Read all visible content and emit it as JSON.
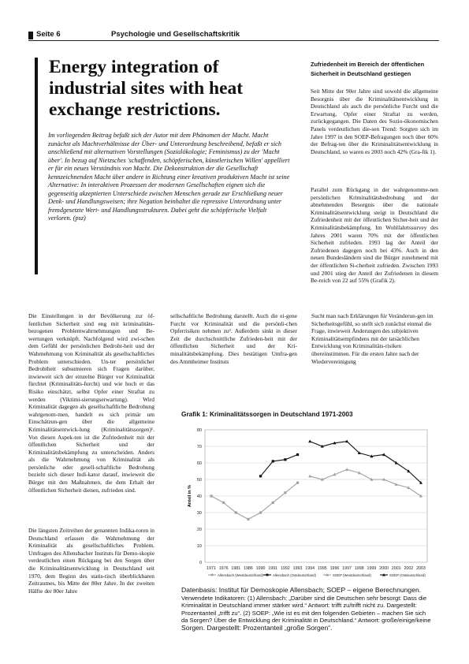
{
  "header": {
    "page": "Seite 6",
    "magazine": "Psychologie und Gesellschaftskritik"
  },
  "article": {
    "title": "Energy integration of industrial sites with heat exchange restrictions.",
    "abstract": "Im vorliegenden Beitrag befaßt sich der Autor mit dem Phänomen der Macht. Macht zunächst als Machtverhältnisse der Über- und Unterordnung beschreibend, befaßt er sich anschließend mit alternativen Vorstellungen (Sozialökologie; Feminismus) zu der 'Macht über'. In bezug auf Nietzsches 'schaffenden, schöpferischen, künstlerischen Willen' appelliert er für ein neues Verständnis von Macht. Die Dekonstruktion der die Gesellschaft kennzeichnenden Macht über andere in Richtung einer kreativen produktiven Macht ist seine Alternative: In interaktiven Prozessen der modernen Gesellschaften eignen sich die gegenseitig akzeptierten Unterschiede zwischen Menschen gerade zur Erschließung neuer Denk- und Handlungsweisen; ihre Negation beinhaltet die repressive Unterordnung unter fremdgesetzte Wert- und Handlungsstrukturen. Dabei geht die schöpferische Vielfalt verloren. (psz)"
  },
  "sidebar": {
    "heading": "Zufriedenheit im Bereich der öffentlichen Sicherheit in Deutschland gestiegen",
    "p1": "Seit Mitte der 90er Jahre sind sowohl die allgemeine Besorgnis über die Kriminalitätsentwicklung in Deutschland als auch die persönliche Furcht und die Erwartung, Opfer einer Straftat zu werden, zurückgegangen. Die Daten des Sozio-ökonomischen Panels verdeutlichen die-sen Trend: Sorgten sich im Jahre 1997 in den SOEP-Befragungen noch über 60% der Befrag-ten über die Kriminalitätsentwicklung in Deutschland, so waren es 2003 noch 42% (Gra-fik 1).",
    "p2": "Parallel zum Rückgang in der wahrgenomme-nen persönlichen Kriminalitätsbedrohung und der abnehmenden Besorgnis über die nationale Kriminalitätsentwicklung steigt in Deutschland die Zufriedenheit mit der öffentlichen Sicher-heit und der Kriminalitätsbekämpfung. Im Wohlfahrtssurvey des Jahres 2001 waren 70% mit der öffentlichen Sicherheit zufrieden. 1993 lag der Anteil der Zufriedenen dagegen noch bei 43%. Auch in den neuen Bundesländern sind die Bürger zunehmend mit der öffentlichen Si-cherheit zufrieden. Zwischen 1993 und 2001 stieg der Anteil der Zufriedenen in diesem Be-reich von 22 auf 55% (Grafik 2)."
  },
  "columns": {
    "col1": "Die Einstellungen in der Bevölkerung zur öf-fentlichen Sicherheit sind eng mit kriminalitäts-bezogenen Problemwahrnehmungen und Be-wertungen verknüpft. Nachfolgend wird zwi-schen dem Gefühl der persönlichen Bedroht-heit und der Wahrnehmung von Kriminalität als gesellschaftliches Problem unterschieden. Un-ter persönlicher Bedrohtheit subsumieren sich Fragen darüber, inwieweit sich der einzelne Bürger vor Kriminalität fürchtet (Kriminalitäts-furcht) und wie hoch er das Risiko einschätzt, selbst Opfer einer Straftat zu werden (Viktimi-sierungserwartung). Wird Kriminalität dagegen als gesellschaftliche Bedrohung wahrgenom-men, handelt es sich primär um Einschätzun-gen über die allgemeine Kriminalitätsentwick-lung (Kriminalitätssorgen)¹. Von diesen Aspek-ten ist die Zufriedenheit mit der öffentlichen Sicherheit und der Kriminalitätsbekämpfung zu unterscheiden. Anders als die Wahrnehmung von Kriminalität als persönliche oder gesell-schaftliche Bedrohung bezieht sich dieser Indi-kator darauf, inwieweit die Bürger mit den Maßnahmen, die dem Erhalt der öffentlichen Sicherheit dienen, zufrieden sind.",
    "col1b": "Die längsten Zeitreihen der genannten Indika-toren in Deutschland erfassen die Wahrnehmung der Kriminalität als gesellschaftliches Problem. Umfragen des Allensbacher Instituts für Demo-skopie verdeutlichen einen Rückgang bei den Sorgen über die Kriminalitätsentwicklung in Deutschland seit 1970, dem Beginn des statis-tisch überblickbaren Zeitraumes, bis Mitte der 80er Jahre. In der zweiten Hälfte der 80er Jahre",
    "col2": "sellschaftliche Bedrohung darstellt. Auch die ei-gene Furcht vor Kriminalität und die persönli-chen Opferrisiken nehmen zu². Außerdem sinkt in dieser Zeit die durchschnittliche Zufrieden-heit mit der öffentlichen Sicherheit und der Kri-minalitätsbekämpfung. Dies bestätigen Umfra-gen des Ammheimer Instituts",
    "col3": "Sucht man nach Erklärungen für Veränderun-gen im Sicherheitsgefühl, so stellt sich zunächst einmal die Frage, inwieweit Änderungen des subjektiven Kriminalitätsempfindens mit der tatsächlichen Entwicklung von Kriminalitäts-risiken übereinstimmen. Für die ersten Jahre nach der Wiedervereinigung"
  },
  "figure": {
    "title": "Grafik 1: Kriminalitätssorgen in Deutschland 1971-2003",
    "caption_main": "Datenbasis: Institut für Demoskopie Allensbach; SOEP – eigene Berechnungen.",
    "caption_detail": "Verwendete Indikatoren: (1) Allensbach: „Darüber sind die Deutschen sehr besorgt: Dass die Kriminalität in Deutschland immer stärker wird.“ Antwort: trifft zu/trifft nicht zu. Dargestellt: Prozentanteil „trifft zu“. (2) SOEP: „Wie ist es mit den folgenden Gebieten – machen Sie sich da Sorgen? Über die Entwicklung der Kriminalität in Deutschland.“ Antwort: große/einige/keine",
    "caption_end": "Sorgen. Dargestellt: Prozentanteil „große Sorgen“."
  },
  "chart_data": {
    "type": "line",
    "title": "Grafik 1: Kriminalitätssorgen in Deutschland 1971-2003",
    "xlabel": "",
    "ylabel": "Anteil in %",
    "ylim": [
      0,
      80
    ],
    "yticks": [
      0,
      10,
      20,
      30,
      40,
      50,
      60,
      70,
      80
    ],
    "categories": [
      "1971",
      "1976",
      "1981",
      "1986",
      "1990",
      "1991",
      "1992",
      "1993",
      "1994",
      "1995",
      "1996",
      "1997",
      "1998",
      "1999",
      "2000",
      "2001",
      "2002",
      "2003"
    ],
    "grid": true,
    "legend_position": "bottom",
    "series": [
      {
        "name": "Allensbach (Westdeutschland)",
        "color": "#a0a0a0",
        "marker": "square",
        "values": [
          40,
          36,
          30,
          26,
          30,
          36,
          42,
          48,
          null,
          null,
          null,
          null,
          null,
          null,
          null,
          null,
          null,
          null
        ]
      },
      {
        "name": "Allensbach (Ostdeutschland)",
        "color": "#111111",
        "marker": "square",
        "values": [
          null,
          null,
          null,
          null,
          52,
          61,
          62,
          65,
          null,
          null,
          null,
          null,
          null,
          null,
          null,
          null,
          null,
          null
        ]
      },
      {
        "name": "SOEP (Westdeutschland)",
        "color": "#a0a0a0",
        "marker": "triangle",
        "values": [
          null,
          null,
          null,
          null,
          null,
          null,
          null,
          null,
          52,
          50,
          53,
          56,
          54,
          50,
          50,
          47,
          45,
          40
        ]
      },
      {
        "name": "SOEP (Ostdeutschland)",
        "color": "#111111",
        "marker": "triangle",
        "values": [
          null,
          null,
          null,
          null,
          null,
          null,
          null,
          null,
          73,
          70,
          72,
          73,
          66,
          64,
          65,
          60,
          55,
          48
        ]
      }
    ]
  }
}
